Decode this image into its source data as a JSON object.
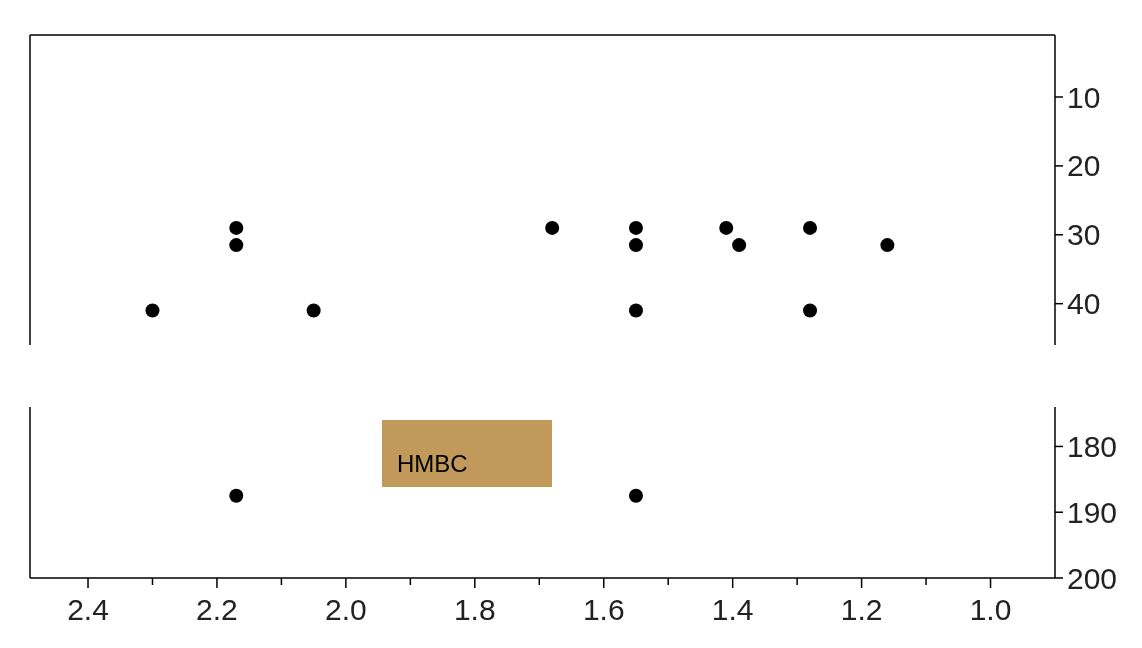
{
  "chart_data": [
    {
      "type": "scatter",
      "xlim": [
        2.49,
        0.9
      ],
      "ylim": [
        46,
        1
      ],
      "yticks": [
        10,
        20,
        30,
        40
      ],
      "tick_labels": "y",
      "marker": "circle",
      "grid": false,
      "series": [
        {
          "color": "#000000",
          "x": [
            2.3,
            2.17,
            2.17,
            2.05,
            1.68,
            1.55,
            1.55,
            1.55,
            1.41,
            1.39,
            1.28,
            1.28,
            1.16
          ],
          "values": [
            41,
            29,
            31.5,
            41,
            29,
            29,
            31.5,
            41,
            29,
            31.5,
            29,
            41,
            31.5
          ]
        }
      ]
    },
    {
      "type": "scatter",
      "xlim": [
        2.49,
        0.9
      ],
      "ylim": [
        200,
        174
      ],
      "xticks": [
        2.4,
        {
          "value": 2.3,
          "label": null
        },
        2.2,
        {
          "value": 2.1,
          "label": null
        },
        {
          "value": 2.0,
          "label": "2.0"
        },
        {
          "value": 1.9,
          "label": null
        },
        1.8,
        {
          "value": 1.7,
          "label": null
        },
        1.6,
        {
          "value": 1.5,
          "label": null
        },
        1.4,
        {
          "value": 1.3,
          "label": null
        },
        1.2,
        {
          "value": 1.1,
          "label": null
        },
        {
          "value": 1.0,
          "label": "1.0"
        }
      ],
      "yticks": [
        180,
        190,
        200
      ],
      "marker": "circle",
      "grid": false,
      "annotations": [
        "HMBC"
      ],
      "series": [
        {
          "color": "#000000",
          "x": [
            2.17,
            1.55
          ],
          "values": [
            187.5,
            187.5
          ]
        }
      ]
    }
  ]
}
